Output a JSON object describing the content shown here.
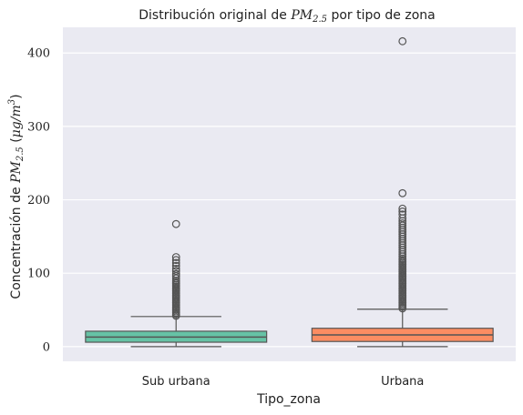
{
  "chart_data": {
    "type": "box",
    "title_parts": [
      "Distribución original de ",
      "PM",
      "2.5",
      " por tipo de zona"
    ],
    "xlabel": "Tipo_zona",
    "ylabel_parts": [
      "Concentración de ",
      "PM",
      "2.5",
      " (",
      "μg/m",
      "3",
      ")"
    ],
    "categories": [
      "Sub urbana",
      "Urbana"
    ],
    "ylim": [
      -20,
      435
    ],
    "yticks": [
      0,
      100,
      200,
      300,
      400
    ],
    "grid": true,
    "colors": {
      "background": "#eaeaf2",
      "grid": "#ffffff",
      "edge": "#555555"
    },
    "series": [
      {
        "category": "Sub urbana",
        "color": "#66c2a5",
        "whisker_low": 0,
        "q1": 6,
        "median": 13,
        "q3": 21,
        "whisker_high": 41,
        "outliers": [
          42,
          44,
          46,
          48,
          50,
          52,
          54,
          56,
          58,
          60,
          62,
          64,
          66,
          68,
          70,
          72,
          74,
          76,
          78,
          80,
          82,
          84,
          86,
          88,
          90,
          93,
          96,
          99,
          103,
          106,
          110,
          114,
          118,
          122,
          167
        ]
      },
      {
        "category": "Urbana",
        "color": "#fc8d62",
        "whisker_low": 0,
        "q1": 7,
        "median": 16,
        "q3": 25,
        "whisker_high": 51,
        "outliers": [
          52,
          54,
          56,
          58,
          60,
          62,
          64,
          66,
          68,
          70,
          72,
          74,
          76,
          78,
          80,
          82,
          84,
          86,
          88,
          90,
          92,
          94,
          96,
          98,
          100,
          102,
          104,
          106,
          108,
          110,
          112,
          114,
          116,
          118,
          120,
          123,
          126,
          129,
          132,
          135,
          138,
          141,
          144,
          147,
          150,
          153,
          156,
          159,
          162,
          165,
          168,
          171,
          175,
          180,
          184,
          188,
          209,
          416
        ]
      }
    ]
  }
}
